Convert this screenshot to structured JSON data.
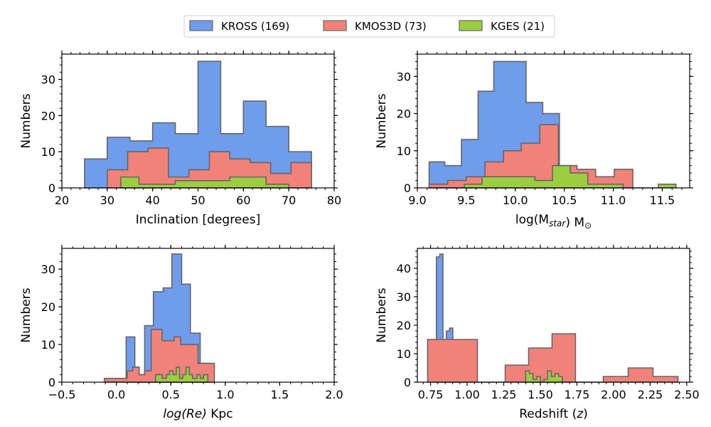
{
  "colors": {
    "KROSS": "#6f9ceb",
    "KMOS3D": "#f0827a",
    "KGES": "#9ccc40",
    "edge": "#666666"
  },
  "legend": {
    "entries": [
      "KROSS (169)",
      "KMOS3D (73)",
      "KGES (21)"
    ],
    "placement": "top-center"
  },
  "chart_data": [
    {
      "type": "histogram",
      "xlabel": "Inclination [degrees]",
      "ylabel": "Numbers",
      "xlim": [
        20,
        80
      ],
      "ylim": [
        0,
        37
      ],
      "xticks": [
        20,
        30,
        40,
        50,
        60,
        70,
        80
      ],
      "xticklabels": [
        "20",
        "30",
        "40",
        "50",
        "60",
        "70",
        "80"
      ],
      "yticks": [
        0,
        10,
        20,
        30
      ],
      "yticklabels": [
        "0",
        "10",
        "20",
        "30"
      ],
      "series": [
        {
          "name": "KROSS (169)",
          "key": "KROSS",
          "edges": [
            25,
            30,
            35,
            40,
            45,
            50,
            55,
            60,
            65,
            70,
            75
          ],
          "counts": [
            8,
            14,
            13,
            18,
            15,
            35,
            15,
            24,
            17,
            10
          ]
        },
        {
          "name": "KMOS3D (73)",
          "key": "KMOS3D",
          "edges": [
            30,
            34.5,
            39,
            43.5,
            48,
            52.5,
            57,
            61.5,
            66,
            70.5,
            75
          ],
          "counts": [
            5,
            10,
            11,
            3,
            5,
            10,
            8,
            7,
            4,
            7
          ]
        },
        {
          "name": "KGES (21)",
          "key": "KGES",
          "edges": [
            33,
            37,
            41,
            45,
            49,
            53,
            57,
            61,
            65,
            70
          ],
          "counts": [
            3,
            1,
            1,
            2,
            2,
            2,
            3,
            3,
            1
          ]
        }
      ]
    },
    {
      "type": "histogram",
      "xlabel": "log(M",
      "xlabel_sub": "star",
      "xlabel_tail": ") M",
      "xlabel_sym": "⊙",
      "ylabel": "Numbers",
      "xlim": [
        9.0,
        11.78
      ],
      "ylim": [
        0,
        36
      ],
      "xticks": [
        9.0,
        9.5,
        10.0,
        10.5,
        11.0,
        11.5
      ],
      "xticklabels": [
        "9.0",
        "9.5",
        "10.0",
        "10.5",
        "11.0",
        "11.5"
      ],
      "yticks": [
        0,
        10,
        20,
        30
      ],
      "yticklabels": [
        "0",
        "10",
        "20",
        "30"
      ],
      "series": [
        {
          "name": "KROSS (169)",
          "key": "KROSS",
          "edges": [
            9.12,
            9.28,
            9.45,
            9.62,
            9.78,
            9.95,
            10.11,
            10.28,
            10.45,
            10.61
          ],
          "counts": [
            7,
            6,
            13,
            26,
            34,
            34,
            23,
            20,
            5
          ]
        },
        {
          "name": "KMOS3D (73)",
          "key": "KMOS3D",
          "edges": [
            9.12,
            9.31,
            9.5,
            9.69,
            9.88,
            10.06,
            10.25,
            10.44,
            10.63,
            10.82,
            11.01,
            11.2
          ],
          "counts": [
            1,
            2,
            3,
            7,
            10,
            12,
            17,
            6,
            5,
            3,
            5
          ]
        },
        {
          "name": "KGES (21)",
          "key": "KGES",
          "edges": [
            9.12,
            9.3,
            9.48,
            9.66,
            9.84,
            10.02,
            10.2,
            10.38,
            10.56,
            10.74,
            10.92,
            11.1,
            11.28,
            11.46,
            11.64
          ],
          "counts": [
            0,
            0,
            1,
            3,
            3,
            3,
            2,
            6,
            4,
            1,
            1,
            0,
            0,
            1
          ]
        }
      ]
    },
    {
      "type": "histogram",
      "xlabel": "log(Re)",
      "xlabel_tail": " Kpc",
      "ylabel": "Numbers",
      "xlim": [
        -0.5,
        2.0
      ],
      "ylim": [
        0,
        35.5
      ],
      "xticks": [
        -0.5,
        0.0,
        0.5,
        1.0,
        1.5,
        2.0
      ],
      "xticklabels": [
        "−0.5",
        "0.0",
        "0.5",
        "1.0",
        "1.5",
        "2.0"
      ],
      "yticks": [
        0,
        10,
        20,
        30
      ],
      "yticklabels": [
        "0",
        "10",
        "20",
        "30"
      ],
      "series": [
        {
          "name": "KROSS (169)",
          "key": "KROSS",
          "edges": [
            0.09,
            0.17,
            0.26,
            0.34,
            0.43,
            0.51,
            0.6,
            0.68,
            0.77,
            0.85
          ],
          "counts": [
            12,
            2,
            15,
            24,
            25,
            34,
            26,
            13,
            5
          ]
        },
        {
          "name": "KMOS3D (73)",
          "key": "KMOS3D",
          "edges": [
            -0.11,
            0.1,
            0.15,
            0.21,
            0.26,
            0.32,
            0.37,
            0.42,
            0.48,
            0.53,
            0.59,
            0.64,
            0.7,
            0.75,
            0.81,
            0.9
          ],
          "counts": [
            1,
            3,
            4,
            2,
            3,
            14,
            14,
            11,
            11,
            12,
            10,
            10,
            10,
            5,
            5
          ]
        },
        {
          "name": "KGES (21)",
          "key": "KGES",
          "edges": [
            0.36,
            0.39,
            0.42,
            0.46,
            0.49,
            0.52,
            0.55,
            0.58,
            0.61,
            0.64,
            0.67,
            0.7,
            0.74,
            0.77,
            0.8,
            0.84
          ],
          "counts": [
            2,
            2,
            1,
            2,
            3,
            2,
            4,
            1,
            2,
            4,
            2,
            1,
            2,
            1,
            2
          ]
        }
      ]
    },
    {
      "type": "histogram",
      "xlabel": "Redshift (",
      "xlabel_ital": "z",
      "xlabel_tail": ")",
      "ylabel": "Numbers",
      "xlim": [
        0.66,
        2.52
      ],
      "ylim": [
        0,
        47
      ],
      "xticks": [
        0.75,
        1.0,
        1.25,
        1.5,
        1.75,
        2.0,
        2.25,
        2.5
      ],
      "xticklabels": [
        "0.75",
        "1.00",
        "1.25",
        "1.50",
        "1.75",
        "2.00",
        "2.25",
        "2.50"
      ],
      "yticks": [
        0,
        10,
        20,
        30,
        40
      ],
      "yticklabels": [
        "0",
        "10",
        "20",
        "30",
        "40"
      ],
      "series": [
        {
          "name": "KROSS (169)",
          "key": "KROSS",
          "edges": [
            0.79,
            0.813,
            0.835,
            0.858,
            0.88,
            0.902,
            0.925,
            0.948,
            0.97,
            0.992
          ],
          "counts": [
            44,
            45,
            14,
            18,
            19,
            9,
            2,
            10,
            4
          ]
        },
        {
          "name": "KMOS3D (73)",
          "key": "KMOS3D",
          "edges": [
            0.73,
            1.07,
            1.26,
            1.42,
            1.58,
            1.74,
            1.93,
            2.1,
            2.27,
            2.44
          ],
          "counts": [
            15,
            0,
            6,
            12,
            17,
            0,
            2,
            5,
            2
          ]
        },
        {
          "name": "KGES (21)",
          "key": "KGES",
          "edges": [
            1.4,
            1.425,
            1.45,
            1.475,
            1.5,
            1.525,
            1.55,
            1.575,
            1.6,
            1.625,
            1.65
          ],
          "counts": [
            4,
            3,
            1,
            2,
            0,
            1,
            4,
            2,
            3,
            2
          ]
        }
      ]
    }
  ]
}
